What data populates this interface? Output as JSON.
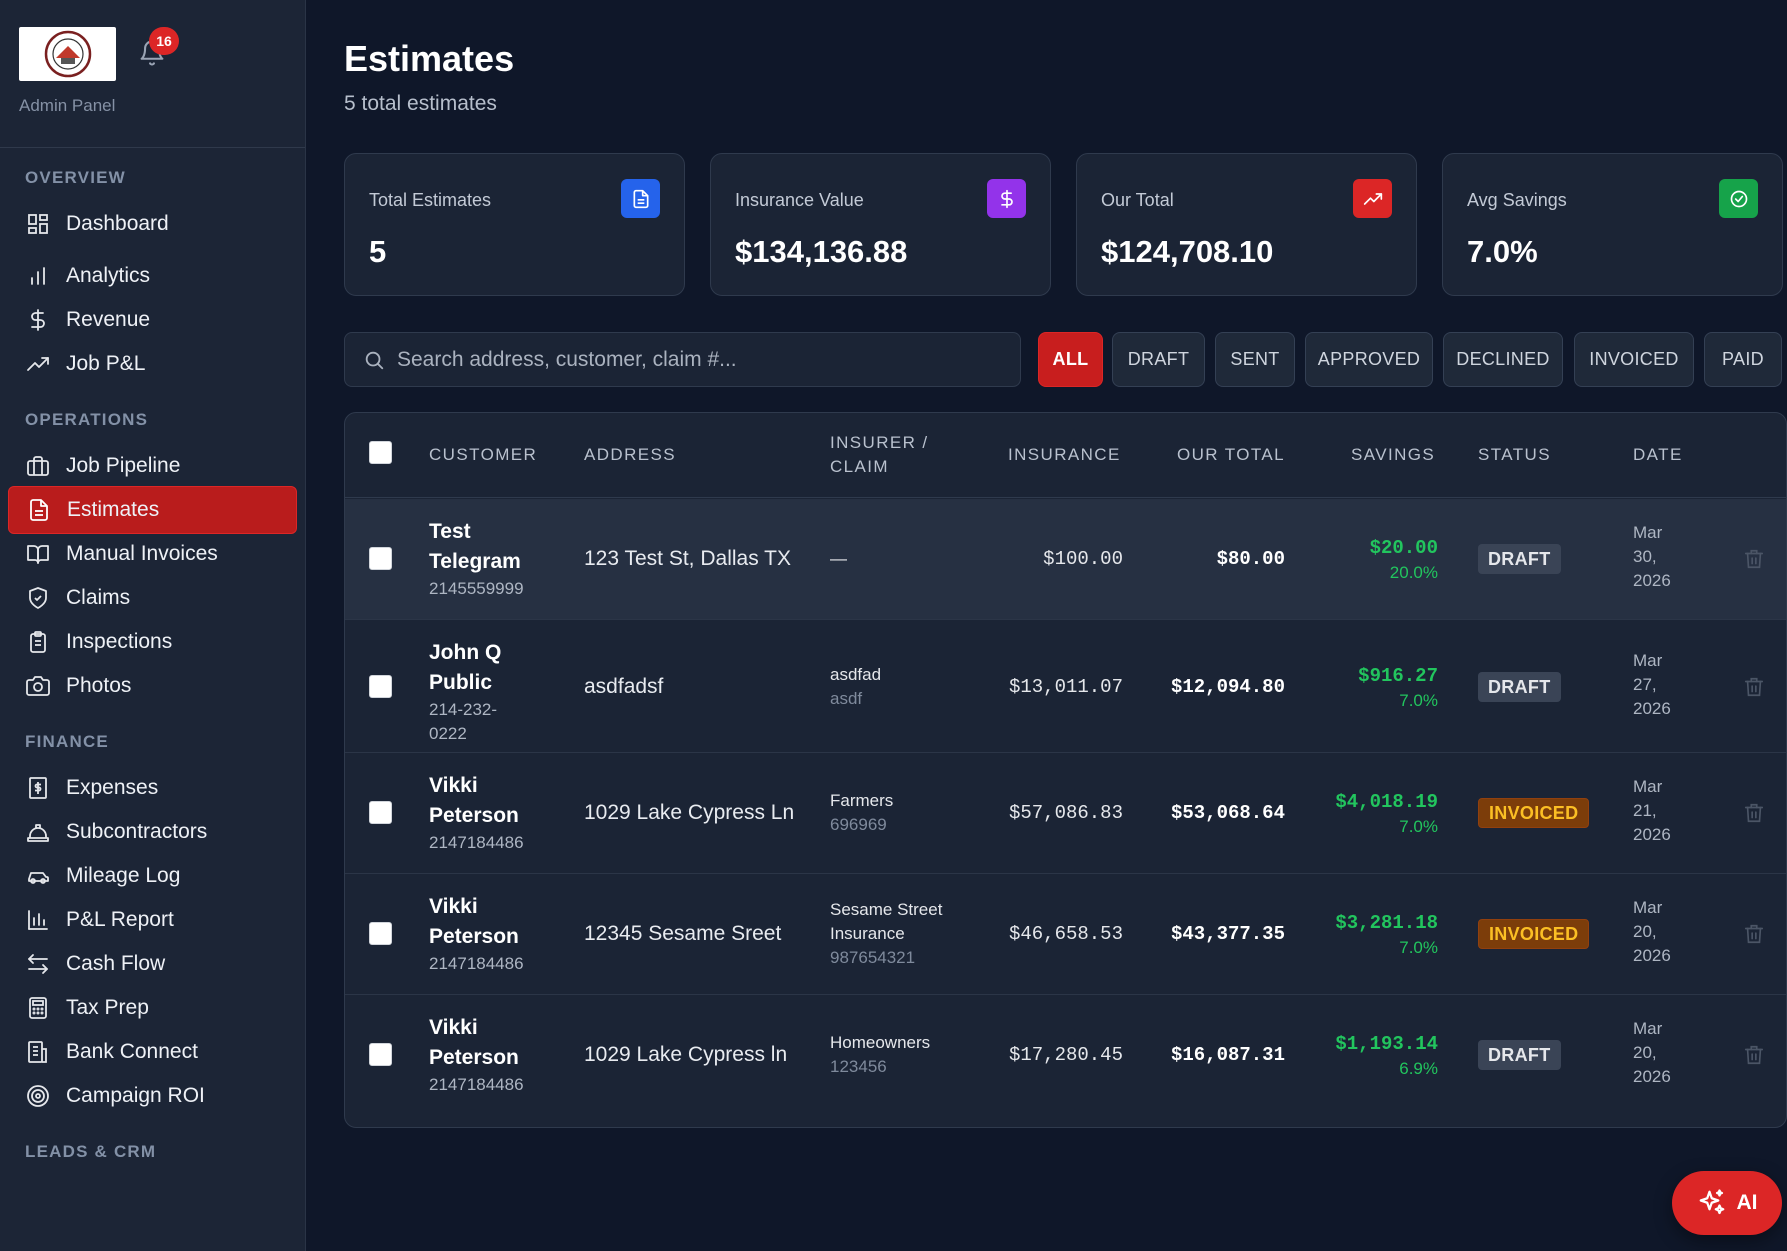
{
  "sidebar": {
    "notifications_count": "16",
    "admin_label": "Admin Panel",
    "sections": [
      {
        "title": "OVERVIEW",
        "items": [
          {
            "label": "Dashboard",
            "icon": "grid-icon"
          },
          {
            "label": "Analytics",
            "icon": "bar-chart-icon"
          },
          {
            "label": "Revenue",
            "icon": "dollar-icon"
          },
          {
            "label": "Job P&L",
            "icon": "trending-up-icon"
          }
        ]
      },
      {
        "title": "OPERATIONS",
        "items": [
          {
            "label": "Job Pipeline",
            "icon": "briefcase-icon"
          },
          {
            "label": "Estimates",
            "icon": "file-text-icon",
            "active": true
          },
          {
            "label": "Manual Invoices",
            "icon": "book-icon"
          },
          {
            "label": "Claims",
            "icon": "shield-icon"
          },
          {
            "label": "Inspections",
            "icon": "clipboard-icon"
          },
          {
            "label": "Photos",
            "icon": "camera-icon"
          }
        ]
      },
      {
        "title": "FINANCE",
        "items": [
          {
            "label": "Expenses",
            "icon": "receipt-icon"
          },
          {
            "label": "Subcontractors",
            "icon": "hard-hat-icon"
          },
          {
            "label": "Mileage Log",
            "icon": "car-icon"
          },
          {
            "label": "P&L Report",
            "icon": "bar-chart-2-icon"
          },
          {
            "label": "Cash Flow",
            "icon": "arrows-icon"
          },
          {
            "label": "Tax Prep",
            "icon": "calculator-icon"
          },
          {
            "label": "Bank Connect",
            "icon": "bank-icon"
          },
          {
            "label": "Campaign ROI",
            "icon": "target-icon"
          }
        ]
      },
      {
        "title": "LEADS & CRM",
        "items": []
      }
    ]
  },
  "header": {
    "title": "Estimates",
    "subtitle": "5 total estimates"
  },
  "stats": [
    {
      "label": "Total Estimates",
      "value": "5",
      "icon": "file-text-icon",
      "color": "#2563eb"
    },
    {
      "label": "Insurance Value",
      "value": "$134,136.88",
      "icon": "dollar-icon",
      "color": "#9333ea"
    },
    {
      "label": "Our Total",
      "value": "$124,708.10",
      "icon": "trending-up-icon",
      "color": "#dc2626"
    },
    {
      "label": "Avg Savings",
      "value": "7.0%",
      "icon": "check-circle-icon",
      "color": "#16a34a"
    }
  ],
  "search": {
    "placeholder": "Search address, customer, claim #...",
    "value": ""
  },
  "filters": [
    "ALL",
    "DRAFT",
    "SENT",
    "APPROVED",
    "DECLINED",
    "INVOICED",
    "PAID"
  ],
  "active_filter": "ALL",
  "table": {
    "columns": {
      "customer": "CUSTOMER",
      "address": "ADDRESS",
      "insurer_line1": "INSURER /",
      "insurer_line2": "CLAIM",
      "insurance": "INSURANCE",
      "our_total": "OUR TOTAL",
      "savings": "SAVINGS",
      "status": "STATUS",
      "date": "DATE"
    },
    "rows": [
      {
        "name1": "Test",
        "name2": "Telegram",
        "phone1": "2145559999",
        "phone2": "",
        "address": "123 Test St, Dallas TX",
        "insurer1": "—",
        "insurer2": "",
        "claim": "",
        "insurance": "$100.00",
        "our_total": "$80.00",
        "savings": "$20.00",
        "savings_pct": "20.0%",
        "status": "DRAFT",
        "date1": "Mar",
        "date2": "30,",
        "date3": "2026"
      },
      {
        "name1": "John Q",
        "name2": "Public",
        "phone1": "214-232-",
        "phone2": "0222",
        "address": "asdfadsf",
        "insurer1": "asdfad",
        "insurer2": "",
        "claim": "asdf",
        "insurance": "$13,011.07",
        "our_total": "$12,094.80",
        "savings": "$916.27",
        "savings_pct": "7.0%",
        "status": "DRAFT",
        "date1": "Mar",
        "date2": "27,",
        "date3": "2026"
      },
      {
        "name1": "Vikki",
        "name2": "Peterson",
        "phone1": "2147184486",
        "phone2": "",
        "address": "1029 Lake Cypress Ln",
        "insurer1": "Farmers",
        "insurer2": "",
        "claim": "696969",
        "insurance": "$57,086.83",
        "our_total": "$53,068.64",
        "savings": "$4,018.19",
        "savings_pct": "7.0%",
        "status": "INVOICED",
        "date1": "Mar",
        "date2": "21,",
        "date3": "2026"
      },
      {
        "name1": "Vikki",
        "name2": "Peterson",
        "phone1": "2147184486",
        "phone2": "",
        "address": "12345 Sesame Sreet",
        "insurer1": "Sesame Street",
        "insurer2": "Insurance",
        "claim": "987654321",
        "insurance": "$46,658.53",
        "our_total": "$43,377.35",
        "savings": "$3,281.18",
        "savings_pct": "7.0%",
        "status": "INVOICED",
        "date1": "Mar",
        "date2": "20,",
        "date3": "2026"
      },
      {
        "name1": "Vikki",
        "name2": "Peterson",
        "phone1": "2147184486",
        "phone2": "",
        "address": "1029 Lake Cypress ln",
        "insurer1": "Homeowners",
        "insurer2": "",
        "claim": "123456",
        "insurance": "$17,280.45",
        "our_total": "$16,087.31",
        "savings": "$1,193.14",
        "savings_pct": "6.9%",
        "status": "DRAFT",
        "date1": "Mar",
        "date2": "20,",
        "date3": "2026"
      }
    ]
  },
  "ai_button": {
    "label": "AI",
    "icon": "sparkles-icon"
  }
}
